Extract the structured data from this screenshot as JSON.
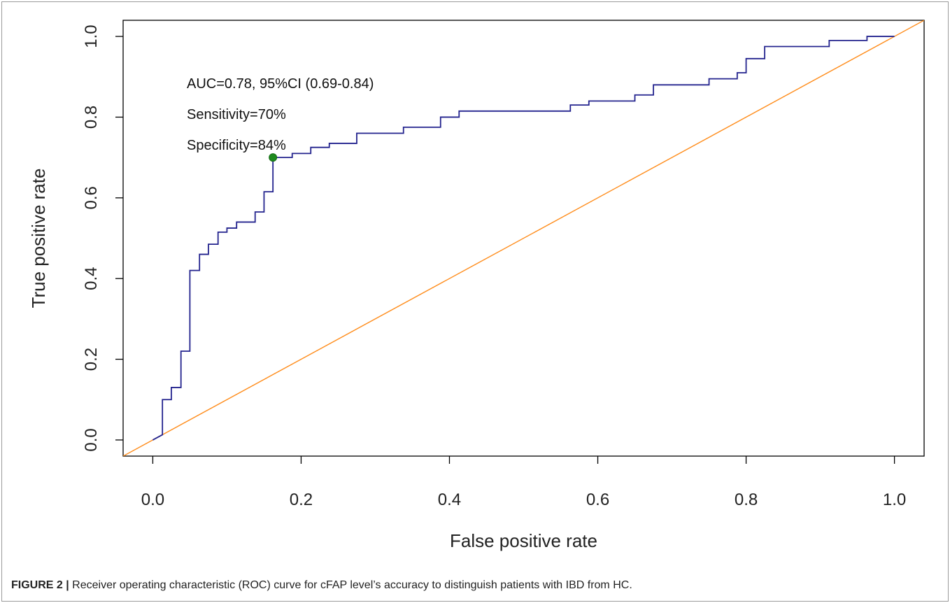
{
  "chart_data": {
    "type": "line",
    "xlabel": "False positive rate",
    "ylabel": "True positive rate",
    "xlim": [
      -0.04,
      1.04
    ],
    "ylim": [
      -0.04,
      1.04
    ],
    "x_ticks": [
      "0.0",
      "0.2",
      "0.4",
      "0.6",
      "0.8",
      "1.0"
    ],
    "y_ticks": [
      "0.0",
      "0.2",
      "0.4",
      "0.6",
      "0.8",
      "1.0"
    ],
    "grid": false,
    "annotations": [
      "AUC=0.78, 95%CI (0.69-0.84)",
      "Sensitivity=70%",
      "Specificity=84%"
    ],
    "series": [
      {
        "color": "#23238e",
        "style": "step",
        "x": [
          0.0,
          0.013,
          0.013,
          0.025,
          0.025,
          0.038,
          0.038,
          0.05,
          0.05,
          0.063,
          0.063,
          0.075,
          0.075,
          0.088,
          0.088,
          0.1,
          0.1,
          0.113,
          0.113,
          0.138,
          0.138,
          0.15,
          0.15,
          0.162,
          0.162,
          0.188,
          0.188,
          0.213,
          0.213,
          0.238,
          0.238,
          0.275,
          0.275,
          0.338,
          0.338,
          0.388,
          0.388,
          0.413,
          0.413,
          0.563,
          0.563,
          0.588,
          0.588,
          0.65,
          0.65,
          0.675,
          0.675,
          0.75,
          0.75,
          0.788,
          0.788,
          0.8,
          0.8,
          0.825,
          0.825,
          0.912,
          0.912,
          0.963,
          0.963,
          1.0
        ],
        "y": [
          0.0,
          0.013,
          0.1,
          0.1,
          0.13,
          0.13,
          0.22,
          0.22,
          0.42,
          0.42,
          0.46,
          0.46,
          0.485,
          0.485,
          0.515,
          0.515,
          0.525,
          0.525,
          0.54,
          0.54,
          0.565,
          0.565,
          0.615,
          0.615,
          0.7,
          0.7,
          0.71,
          0.71,
          0.725,
          0.725,
          0.735,
          0.735,
          0.76,
          0.76,
          0.775,
          0.775,
          0.8,
          0.8,
          0.815,
          0.815,
          0.83,
          0.83,
          0.84,
          0.84,
          0.855,
          0.855,
          0.88,
          0.88,
          0.895,
          0.895,
          0.91,
          0.91,
          0.945,
          0.945,
          0.975,
          0.975,
          0.99,
          0.99,
          1.0,
          1.0
        ]
      },
      {
        "color": "#ff8c1a",
        "style": "line",
        "x": [
          -0.04,
          1.04
        ],
        "y": [
          -0.04,
          1.04
        ]
      }
    ],
    "points": [
      {
        "x": 0.162,
        "y": 0.7,
        "color": "#1e8a1e"
      }
    ]
  },
  "caption": {
    "label": "FIGURE 2 |",
    "text": " Receiver operating characteristic (ROC) curve for cFAP level’s accuracy to distinguish patients with IBD from HC."
  }
}
